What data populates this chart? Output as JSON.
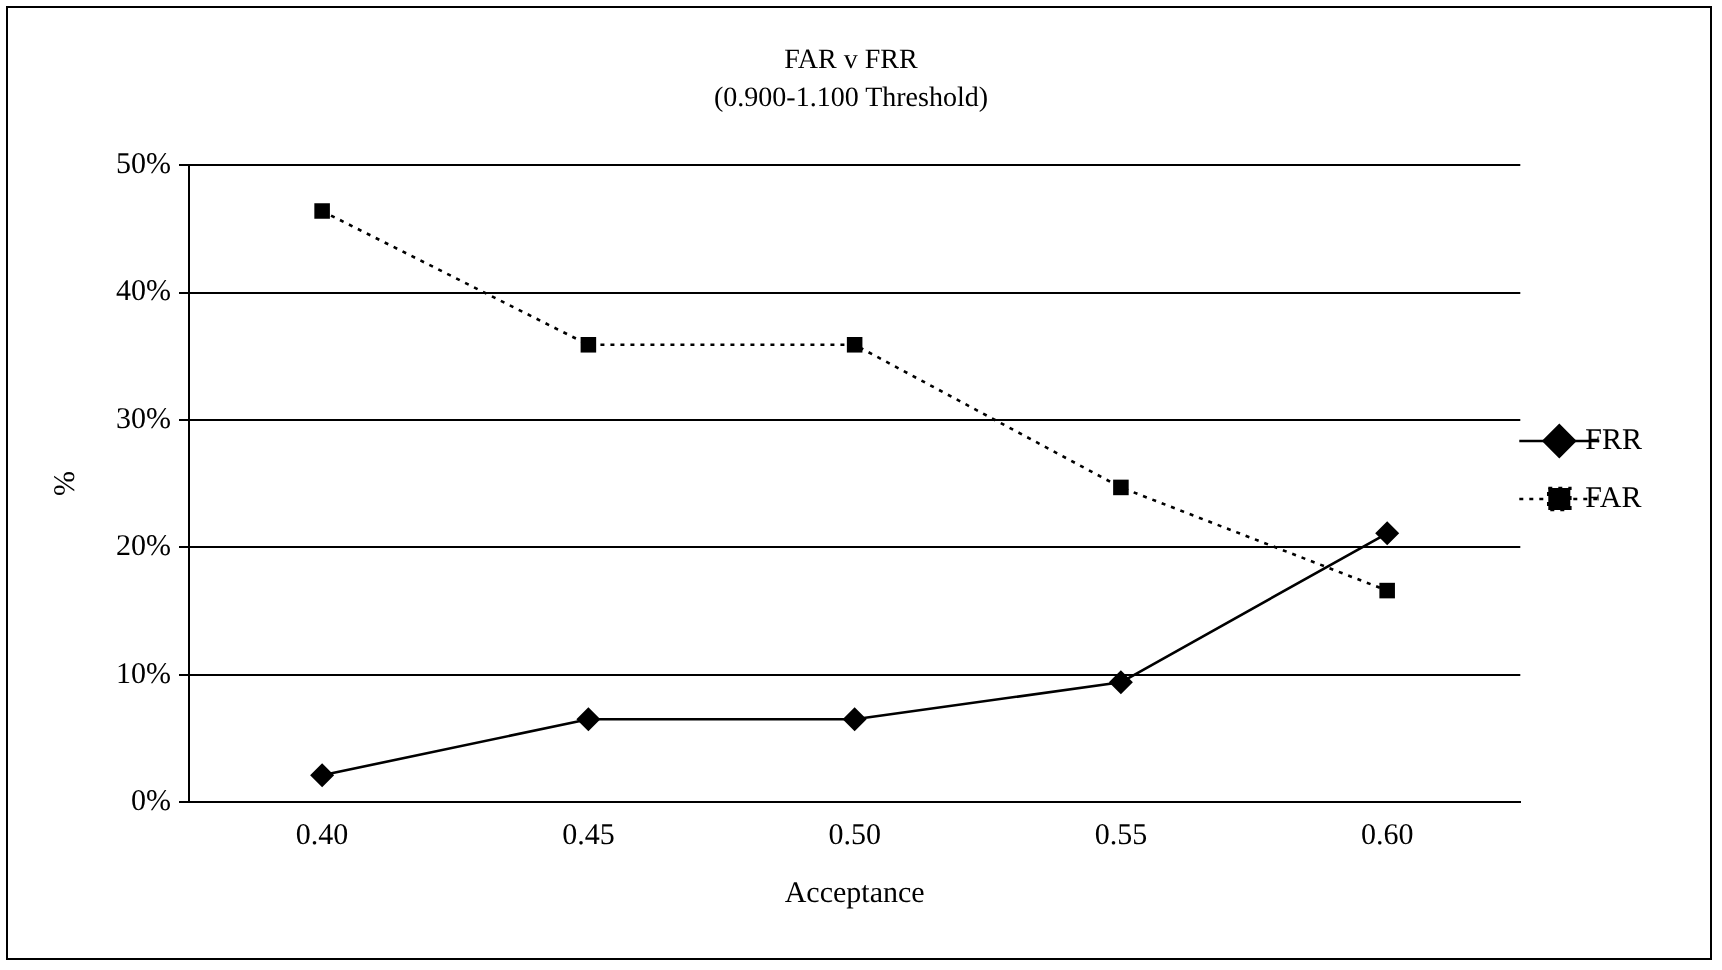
{
  "chart_data": {
    "type": "line",
    "title": "FAR v FRR",
    "subtitle": "(0.900-1.100 Threshold)",
    "xlabel": "Acceptance",
    "ylabel": "%",
    "categories": [
      "0.40",
      "0.45",
      "0.50",
      "0.55",
      "0.60"
    ],
    "series": [
      {
        "name": "FRR",
        "color": "#000000",
        "marker": "diamond",
        "line_style": "solid",
        "values": [
          2.1,
          6.5,
          6.5,
          9.4,
          21.1
        ]
      },
      {
        "name": "FAR",
        "color": "#000000",
        "marker": "square",
        "line_style": "dotted",
        "values": [
          46.4,
          35.9,
          35.9,
          24.7,
          16.6
        ]
      }
    ],
    "ylim": [
      0,
      50
    ],
    "yticks": [
      {
        "value": 0,
        "label": "0%"
      },
      {
        "value": 10,
        "label": "10%"
      },
      {
        "value": 20,
        "label": "20%"
      },
      {
        "value": 30,
        "label": "30%"
      },
      {
        "value": 40,
        "label": "40%"
      },
      {
        "value": 50,
        "label": "50%"
      }
    ],
    "grid": "y",
    "legend": "right"
  }
}
